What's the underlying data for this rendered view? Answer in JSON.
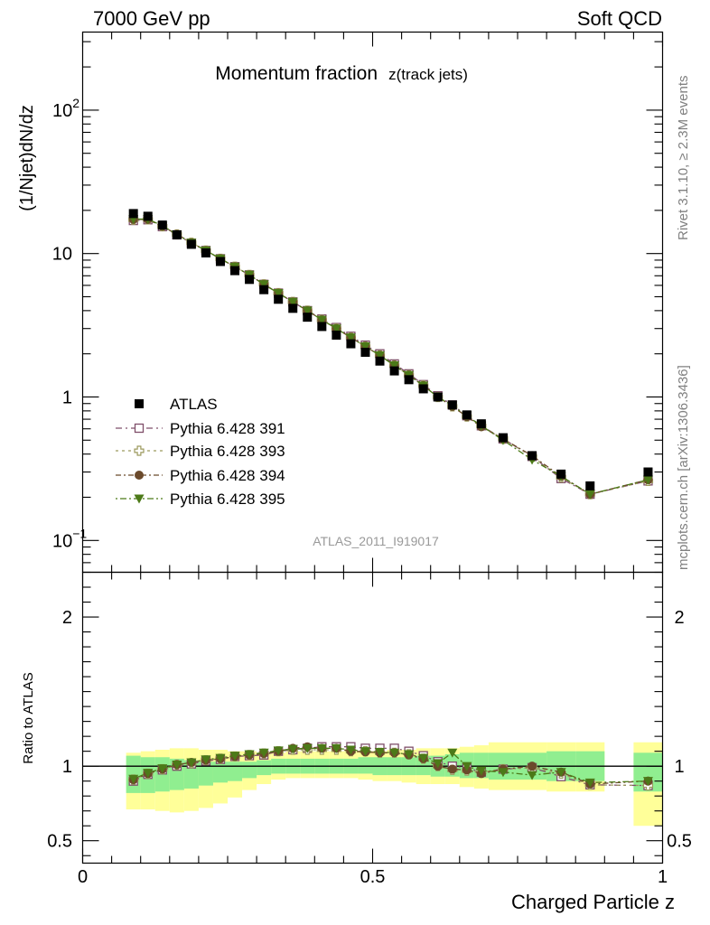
{
  "header": {
    "left": "7000 GeV pp",
    "right": "Soft QCD"
  },
  "side_labels": {
    "rivet": "Rivet 3.1.10, ≥ 2.3M events",
    "mcplots": "mcplots.cern.ch [arXiv:1306.3436]"
  },
  "analysis_ref": "ATLAS_2011_I919017",
  "colors": {
    "atlas": "#000000",
    "p391": "#7f4f6a",
    "p393": "#9c9a5e",
    "p394": "#6b4a2b",
    "p395": "#4c7a18",
    "band_inner": "#90ee90",
    "band_outer": "#ffff99"
  },
  "chart_data": [
    {
      "type": "scatter",
      "title": "Momentum fraction",
      "title_sub": "z(track jets)",
      "ylabel": "(1/Njet)dN/dz",
      "xlim": [
        0,
        1.0
      ],
      "ylim": [
        0.06,
        350
      ],
      "log_y": true,
      "y_ticks": [
        {
          "v": 0.1,
          "base": "10",
          "exp": "−1"
        },
        {
          "v": 1,
          "base": "1",
          "exp": ""
        },
        {
          "v": 10,
          "base": "10",
          "exp": ""
        },
        {
          "v": 100,
          "base": "10",
          "exp": "2"
        }
      ],
      "legend_position": "middle-left",
      "x": [
        0.0875,
        0.1125,
        0.1375,
        0.1625,
        0.1875,
        0.2125,
        0.2375,
        0.2625,
        0.2875,
        0.3125,
        0.3375,
        0.3625,
        0.3875,
        0.4125,
        0.4375,
        0.4625,
        0.4875,
        0.5125,
        0.5375,
        0.5625,
        0.5875,
        0.6125,
        0.6375,
        0.6625,
        0.6875,
        0.725,
        0.775,
        0.825,
        0.875,
        0.975
      ],
      "series": [
        {
          "name": "ATLAS",
          "key": "atlas",
          "marker": "square-filled",
          "values": [
            19.0,
            18.2,
            15.8,
            13.5,
            11.6,
            10.1,
            8.8,
            7.6,
            6.6,
            5.6,
            4.8,
            4.15,
            3.6,
            3.1,
            2.7,
            2.35,
            2.05,
            1.78,
            1.52,
            1.32,
            1.14,
            1.0,
            0.88,
            0.75,
            0.65,
            0.52,
            0.39,
            0.29,
            0.24,
            0.3
          ]
        },
        {
          "name": "Pythia 6.428 391",
          "key": "p391",
          "marker": "square-open",
          "values": [
            17.0,
            17.2,
            15.4,
            13.5,
            11.8,
            10.5,
            9.2,
            8.1,
            7.1,
            6.1,
            5.3,
            4.6,
            4.0,
            3.5,
            3.05,
            2.65,
            2.3,
            2.0,
            1.7,
            1.45,
            1.22,
            1.02,
            0.88,
            0.74,
            0.63,
            0.51,
            0.385,
            0.27,
            0.21,
            0.26
          ]
        },
        {
          "name": "Pythia 6.428 393",
          "key": "p393",
          "marker": "plus-open",
          "values": [
            17.2,
            17.3,
            15.5,
            13.6,
            11.9,
            10.5,
            9.2,
            8.1,
            7.1,
            6.1,
            5.3,
            4.6,
            4.0,
            3.45,
            3.0,
            2.6,
            2.25,
            1.95,
            1.66,
            1.42,
            1.2,
            1.0,
            0.86,
            0.73,
            0.63,
            0.51,
            0.385,
            0.275,
            0.21,
            0.26
          ]
        },
        {
          "name": "Pythia 6.428 394",
          "key": "p394",
          "marker": "circle-filled",
          "values": [
            17.3,
            17.3,
            15.5,
            13.6,
            11.9,
            10.5,
            9.2,
            8.1,
            7.1,
            6.1,
            5.3,
            4.6,
            4.0,
            3.45,
            3.0,
            2.6,
            2.25,
            1.95,
            1.66,
            1.42,
            1.2,
            1.0,
            0.86,
            0.73,
            0.62,
            0.51,
            0.39,
            0.28,
            0.21,
            0.265
          ]
        },
        {
          "name": "Pythia 6.428 395",
          "key": "p395",
          "marker": "triangle-down",
          "values": [
            17.4,
            17.4,
            15.6,
            13.6,
            11.9,
            10.5,
            9.2,
            8.1,
            7.1,
            6.1,
            5.3,
            4.6,
            4.0,
            3.45,
            3.0,
            2.6,
            2.25,
            1.95,
            1.66,
            1.42,
            1.2,
            1.0,
            0.87,
            0.74,
            0.63,
            0.5,
            0.365,
            0.28,
            0.21,
            0.265
          ]
        }
      ]
    },
    {
      "type": "scatter",
      "ylabel": "Ratio to ATLAS",
      "xlabel": "Charged Particle z",
      "xlim": [
        0,
        1.0
      ],
      "ylim": [
        0.35,
        2.3
      ],
      "reference_line": 1,
      "y_ticks": [
        {
          "v": 0.5,
          "label": "0.5"
        },
        {
          "v": 1,
          "label": "1"
        },
        {
          "v": 2,
          "label": "2"
        }
      ],
      "x_ticks": [
        {
          "v": 0,
          "label": "0"
        },
        {
          "v": 0.5,
          "label": "0.5"
        },
        {
          "v": 1,
          "label": "1"
        }
      ],
      "bands": [
        {
          "x0": 0.075,
          "x1": 0.1,
          "inner": [
            0.82,
            1.07
          ],
          "outer": [
            0.71,
            1.09
          ]
        },
        {
          "x0": 0.1,
          "x1": 0.125,
          "inner": [
            0.82,
            1.06
          ],
          "outer": [
            0.71,
            1.1
          ]
        },
        {
          "x0": 0.125,
          "x1": 0.15,
          "inner": [
            0.83,
            1.06
          ],
          "outer": [
            0.7,
            1.11
          ]
        },
        {
          "x0": 0.15,
          "x1": 0.175,
          "inner": [
            0.84,
            1.05
          ],
          "outer": [
            0.69,
            1.12
          ]
        },
        {
          "x0": 0.175,
          "x1": 0.2,
          "inner": [
            0.85,
            1.04
          ],
          "outer": [
            0.7,
            1.12
          ]
        },
        {
          "x0": 0.2,
          "x1": 0.225,
          "inner": [
            0.87,
            1.03
          ],
          "outer": [
            0.72,
            1.11
          ]
        },
        {
          "x0": 0.225,
          "x1": 0.25,
          "inner": [
            0.89,
            1.03
          ],
          "outer": [
            0.75,
            1.11
          ]
        },
        {
          "x0": 0.25,
          "x1": 0.275,
          "inner": [
            0.9,
            1.03
          ],
          "outer": [
            0.79,
            1.1
          ]
        },
        {
          "x0": 0.275,
          "x1": 0.3,
          "inner": [
            0.92,
            1.03
          ],
          "outer": [
            0.84,
            1.1
          ]
        },
        {
          "x0": 0.3,
          "x1": 0.325,
          "inner": [
            0.94,
            1.04
          ],
          "outer": [
            0.88,
            1.09
          ]
        },
        {
          "x0": 0.325,
          "x1": 0.35,
          "inner": [
            0.95,
            1.05
          ],
          "outer": [
            0.91,
            1.09
          ]
        },
        {
          "x0": 0.35,
          "x1": 0.375,
          "inner": [
            0.95,
            1.05
          ],
          "outer": [
            0.92,
            1.1
          ]
        },
        {
          "x0": 0.375,
          "x1": 0.4,
          "inner": [
            0.95,
            1.05
          ],
          "outer": [
            0.92,
            1.1
          ]
        },
        {
          "x0": 0.4,
          "x1": 0.425,
          "inner": [
            0.95,
            1.05
          ],
          "outer": [
            0.92,
            1.1
          ]
        },
        {
          "x0": 0.425,
          "x1": 0.45,
          "inner": [
            0.95,
            1.05
          ],
          "outer": [
            0.92,
            1.1
          ]
        },
        {
          "x0": 0.45,
          "x1": 0.475,
          "inner": [
            0.95,
            1.05
          ],
          "outer": [
            0.92,
            1.1
          ]
        },
        {
          "x0": 0.475,
          "x1": 0.5,
          "inner": [
            0.95,
            1.06
          ],
          "outer": [
            0.91,
            1.1
          ]
        },
        {
          "x0": 0.5,
          "x1": 0.525,
          "inner": [
            0.94,
            1.06
          ],
          "outer": [
            0.9,
            1.1
          ]
        },
        {
          "x0": 0.525,
          "x1": 0.55,
          "inner": [
            0.94,
            1.06
          ],
          "outer": [
            0.9,
            1.11
          ]
        },
        {
          "x0": 0.55,
          "x1": 0.575,
          "inner": [
            0.94,
            1.06
          ],
          "outer": [
            0.89,
            1.11
          ]
        },
        {
          "x0": 0.575,
          "x1": 0.6,
          "inner": [
            0.94,
            1.07
          ],
          "outer": [
            0.88,
            1.12
          ]
        },
        {
          "x0": 0.6,
          "x1": 0.625,
          "inner": [
            0.93,
            1.07
          ],
          "outer": [
            0.88,
            1.12
          ]
        },
        {
          "x0": 0.625,
          "x1": 0.65,
          "inner": [
            0.93,
            1.08
          ],
          "outer": [
            0.88,
            1.12
          ]
        },
        {
          "x0": 0.65,
          "x1": 0.675,
          "inner": [
            0.92,
            1.09
          ],
          "outer": [
            0.86,
            1.13
          ]
        },
        {
          "x0": 0.675,
          "x1": 0.7,
          "inner": [
            0.92,
            1.09
          ],
          "outer": [
            0.85,
            1.14
          ]
        },
        {
          "x0": 0.7,
          "x1": 0.75,
          "inner": [
            0.91,
            1.09
          ],
          "outer": [
            0.84,
            1.16
          ]
        },
        {
          "x0": 0.75,
          "x1": 0.8,
          "inner": [
            0.91,
            1.09
          ],
          "outer": [
            0.84,
            1.16
          ]
        },
        {
          "x0": 0.8,
          "x1": 0.85,
          "inner": [
            0.9,
            1.1
          ],
          "outer": [
            0.83,
            1.16
          ]
        },
        {
          "x0": 0.85,
          "x1": 0.9,
          "inner": [
            0.9,
            1.1
          ],
          "outer": [
            0.83,
            1.16
          ]
        },
        {
          "x0": 0.95,
          "x1": 1.0,
          "inner": [
            0.83,
            1.09
          ],
          "outer": [
            0.6,
            1.16
          ]
        }
      ],
      "x": [
        0.0875,
        0.1125,
        0.1375,
        0.1625,
        0.1875,
        0.2125,
        0.2375,
        0.2625,
        0.2875,
        0.3125,
        0.3375,
        0.3625,
        0.3875,
        0.4125,
        0.4375,
        0.4625,
        0.4875,
        0.5125,
        0.5375,
        0.5625,
        0.5875,
        0.6125,
        0.6375,
        0.6625,
        0.6875,
        0.725,
        0.775,
        0.825,
        0.875,
        0.975
      ],
      "series": [
        {
          "name": "Pythia 6.428 391",
          "key": "p391",
          "marker": "square-open",
          "values": [
            0.9,
            0.945,
            0.975,
            1.0,
            1.015,
            1.035,
            1.045,
            1.065,
            1.07,
            1.075,
            1.1,
            1.11,
            1.12,
            1.13,
            1.13,
            1.13,
            1.12,
            1.12,
            1.12,
            1.1,
            1.07,
            1.03,
            1.0,
            0.99,
            0.96,
            0.98,
            0.99,
            0.93,
            0.875,
            0.87
          ]
        },
        {
          "name": "Pythia 6.428 393",
          "key": "p393",
          "marker": "plus-open",
          "values": [
            0.91,
            0.95,
            0.98,
            1.01,
            1.02,
            1.04,
            1.05,
            1.065,
            1.075,
            1.085,
            1.1,
            1.11,
            1.11,
            1.11,
            1.11,
            1.1,
            1.1,
            1.09,
            1.09,
            1.08,
            1.05,
            1.0,
            0.975,
            0.97,
            0.96,
            0.98,
            0.99,
            0.95,
            0.875,
            0.87
          ]
        },
        {
          "name": "Pythia 6.428 394",
          "key": "p394",
          "marker": "circle-filled",
          "values": [
            0.91,
            0.95,
            0.98,
            1.01,
            1.025,
            1.04,
            1.05,
            1.065,
            1.075,
            1.085,
            1.1,
            1.12,
            1.13,
            1.12,
            1.12,
            1.1,
            1.095,
            1.09,
            1.09,
            1.075,
            1.05,
            1.0,
            0.98,
            0.975,
            0.95,
            0.98,
            1.0,
            0.96,
            0.88,
            0.9
          ]
        },
        {
          "name": "Pythia 6.428 395",
          "key": "p395",
          "marker": "triangle-down",
          "values": [
            0.915,
            0.955,
            0.985,
            1.01,
            1.025,
            1.045,
            1.055,
            1.07,
            1.08,
            1.09,
            1.105,
            1.115,
            1.12,
            1.12,
            1.12,
            1.11,
            1.1,
            1.095,
            1.09,
            1.08,
            1.055,
            1.02,
            1.09,
            1.0,
            0.97,
            0.96,
            0.94,
            0.96,
            0.89,
            0.9
          ]
        }
      ]
    }
  ]
}
